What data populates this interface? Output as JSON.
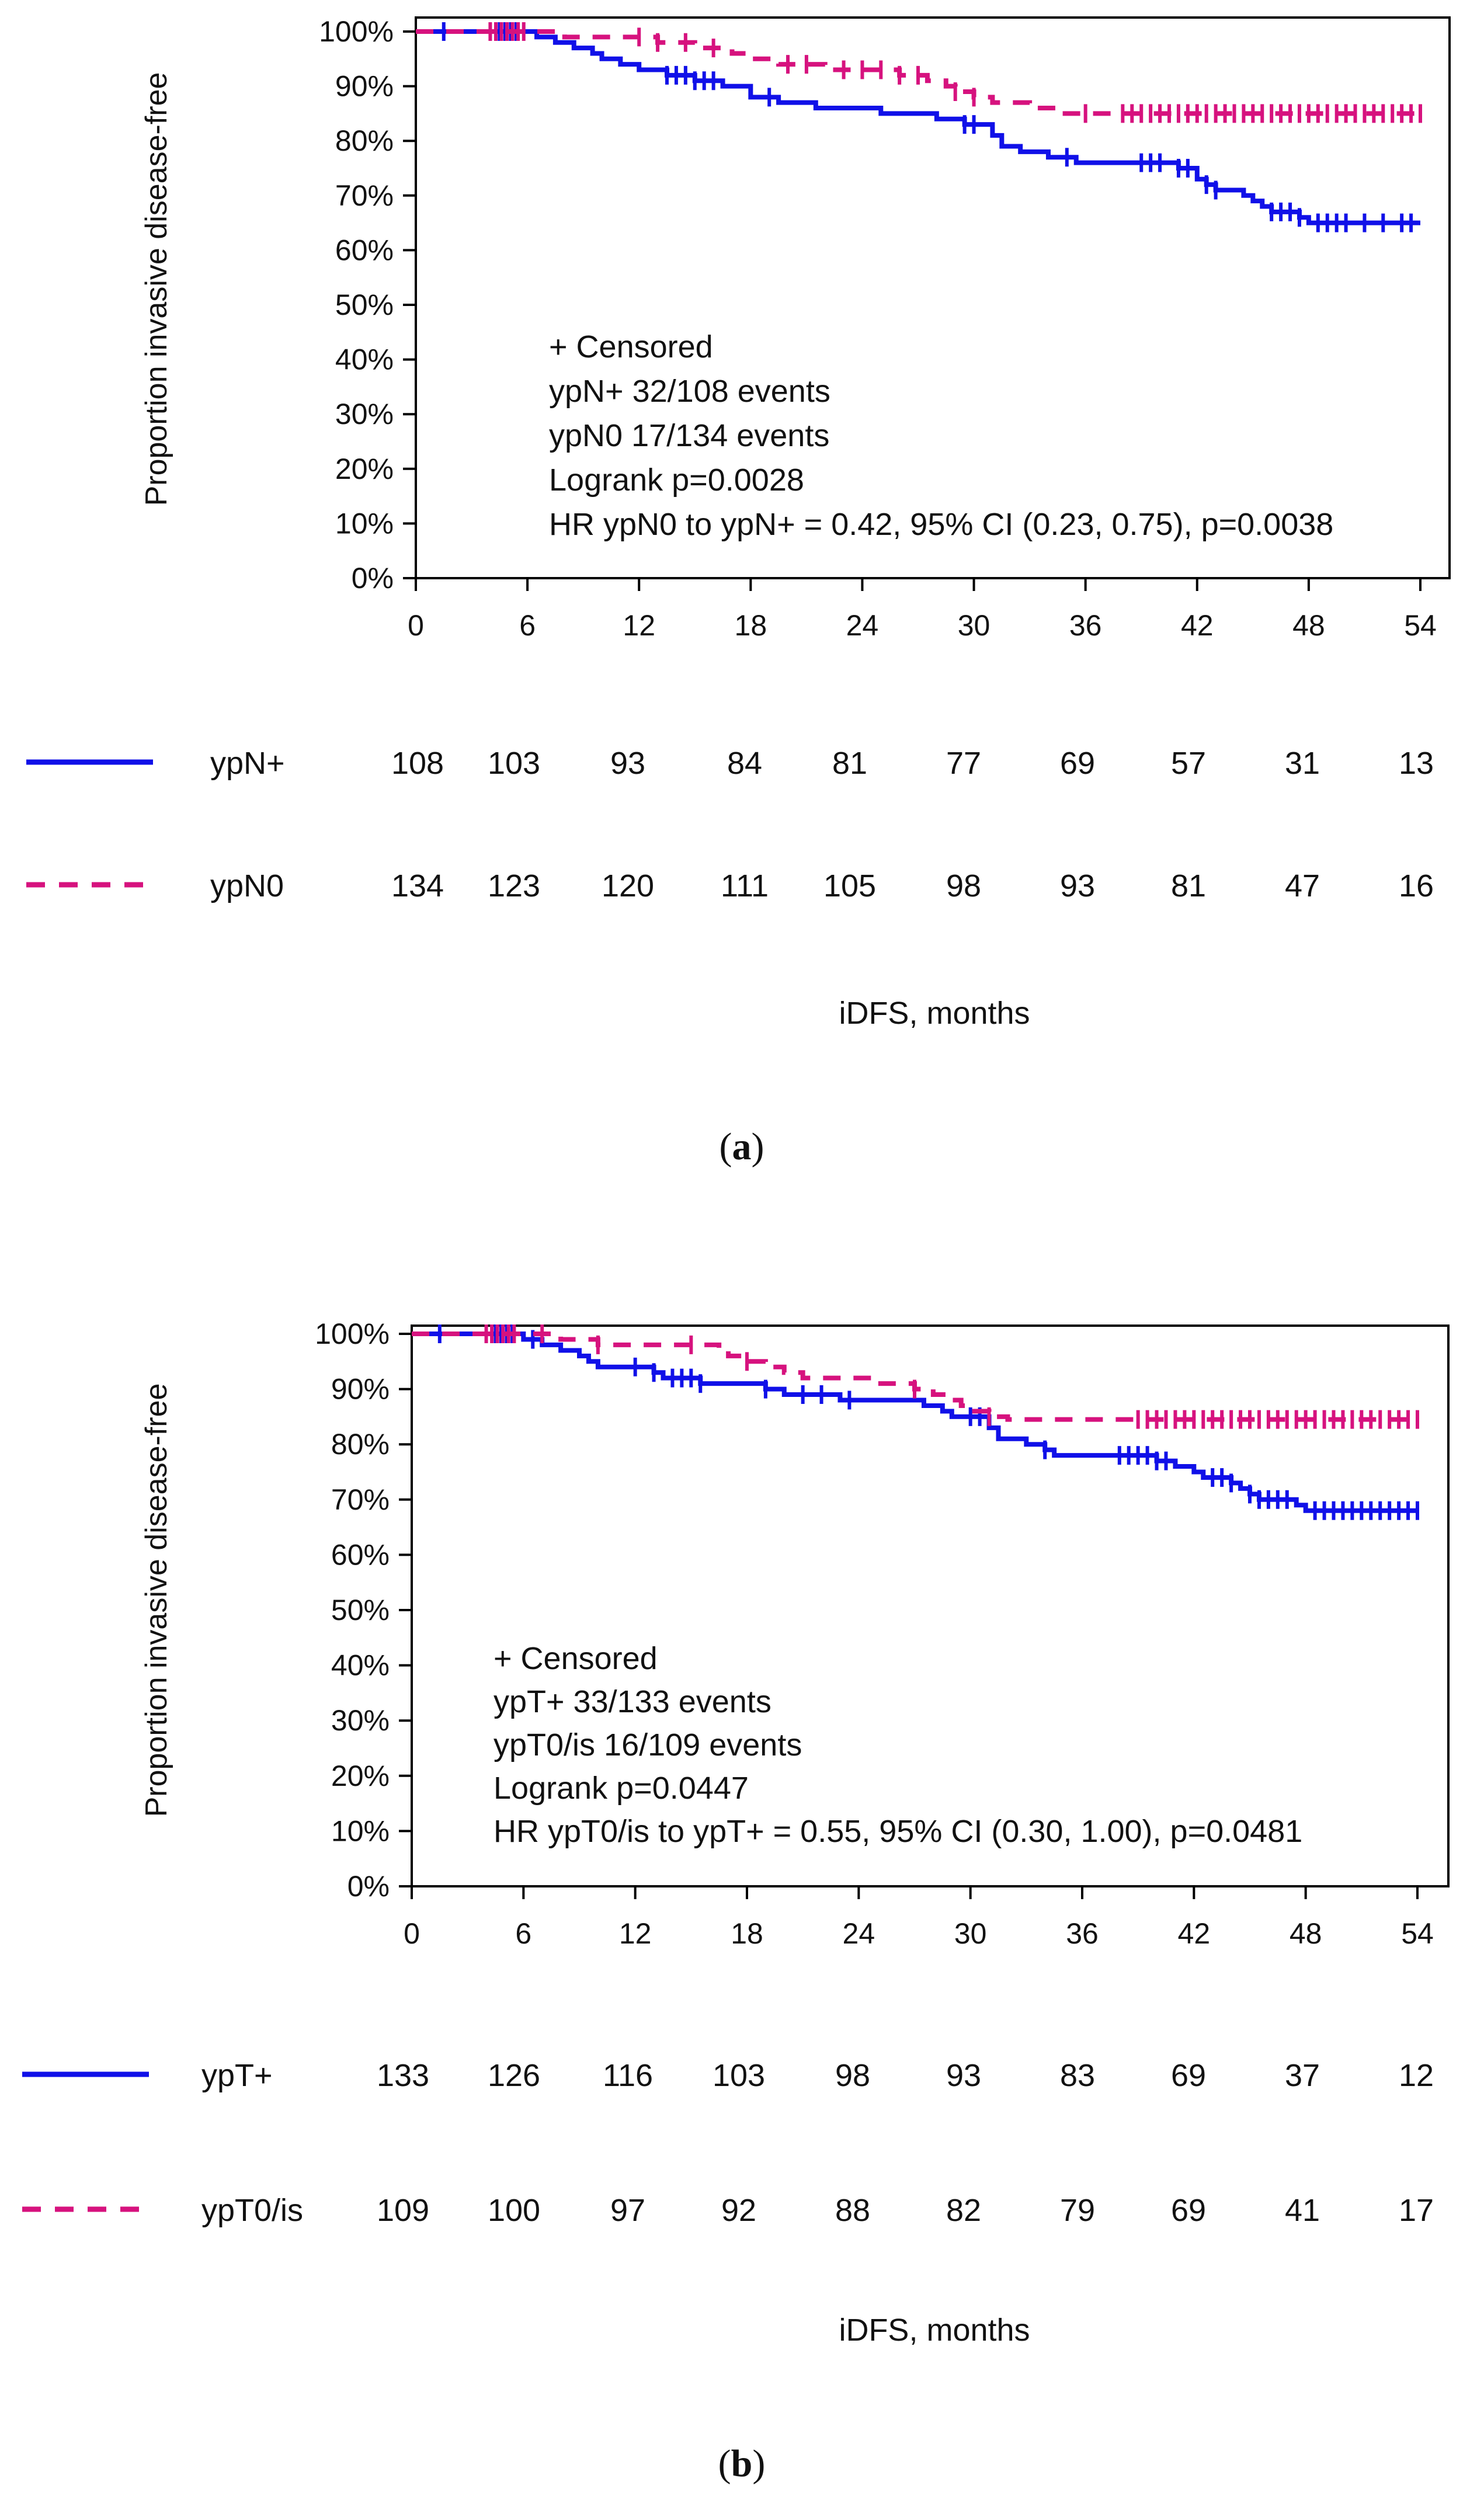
{
  "colors": {
    "series1": "#1010e8",
    "series2": "#d6127e",
    "axis": "#000000"
  },
  "chart_data": [
    {
      "type": "line",
      "panel_label": "a",
      "xlabel": "iDFS, months",
      "ylabel": "Proportion invasive disease-free",
      "xlim": [
        0,
        54
      ],
      "ylim": [
        0,
        100
      ],
      "x_ticks": [
        "0",
        "6",
        "12",
        "18",
        "24",
        "30",
        "36",
        "42",
        "48",
        "54"
      ],
      "y_ticks": [
        "0%",
        "10%",
        "20%",
        "30%",
        "40%",
        "50%",
        "60%",
        "70%",
        "80%",
        "90%",
        "100%"
      ],
      "annotations": [
        "+ Censored",
        "ypN+  32/108 events",
        "ypN0  17/134 events",
        "Logrank p=0.0028",
        "HR ypN0 to ypN+ = 0.42, 95% CI (0.23, 0.75),  p=0.0038"
      ],
      "series": [
        {
          "name": "ypN+",
          "style": "solid",
          "steps": [
            [
              0,
              100
            ],
            [
              6.5,
              99
            ],
            [
              7.5,
              98
            ],
            [
              8.5,
              97
            ],
            [
              9.5,
              96
            ],
            [
              10,
              95
            ],
            [
              11,
              94
            ],
            [
              12,
              93
            ],
            [
              13.5,
              92
            ],
            [
              15,
              91
            ],
            [
              16.5,
              90
            ],
            [
              18,
              88
            ],
            [
              19.5,
              87
            ],
            [
              21.5,
              86
            ],
            [
              25,
              85
            ],
            [
              28,
              84
            ],
            [
              29.5,
              83
            ],
            [
              31,
              81
            ],
            [
              31.5,
              79
            ],
            [
              32.5,
              78
            ],
            [
              34,
              77
            ],
            [
              35.5,
              76
            ],
            [
              41,
              75
            ],
            [
              42,
              73
            ],
            [
              42.5,
              72
            ],
            [
              43,
              71
            ],
            [
              44.5,
              70
            ],
            [
              45,
              69
            ],
            [
              45.5,
              68
            ],
            [
              46,
              67
            ],
            [
              47.5,
              66
            ],
            [
              48,
              65
            ]
          ],
          "end_x": 54,
          "censored": [
            1.5,
            4.5,
            4.8,
            5.1,
            5.4,
            13.5,
            14,
            14.5,
            15,
            15.5,
            16,
            19,
            29.5,
            30,
            35,
            39,
            39.5,
            40,
            41,
            41.5,
            42.5,
            43,
            46,
            46.5,
            47,
            47.5,
            48.5,
            49,
            49.5,
            50,
            51,
            52,
            53,
            53.5
          ],
          "at_risk": [
            108,
            103,
            93,
            84,
            81,
            77,
            69,
            57,
            31,
            13
          ]
        },
        {
          "name": "ypN0",
          "style": "dashed",
          "steps": [
            [
              0,
              100
            ],
            [
              8,
              99
            ],
            [
              13,
              98
            ],
            [
              15,
              97
            ],
            [
              17,
              96
            ],
            [
              18,
              95
            ],
            [
              19.5,
              94
            ],
            [
              22,
              93
            ],
            [
              26,
              92
            ],
            [
              27.5,
              91
            ],
            [
              28.5,
              90
            ],
            [
              29,
              89
            ],
            [
              30,
              88
            ],
            [
              31,
              87
            ],
            [
              33,
              86
            ],
            [
              34.5,
              85
            ]
          ],
          "end_x": 54,
          "censored": [
            4,
            4.3,
            4.6,
            4.9,
            5.2,
            5.5,
            5.8,
            12,
            13,
            14.5,
            16,
            20,
            21,
            23,
            24,
            25,
            26,
            27,
            29,
            30,
            36,
            38,
            38.5,
            39,
            39.5,
            40,
            40.5,
            41,
            41.5,
            42,
            42.5,
            43,
            43.5,
            44,
            44.5,
            45,
            45.5,
            46,
            46.5,
            47,
            47.5,
            48,
            48.5,
            49,
            49.5,
            50,
            50.5,
            51,
            51.5,
            52,
            52.5,
            53,
            53.5,
            54
          ],
          "at_risk": [
            134,
            123,
            120,
            111,
            105,
            98,
            93,
            81,
            47,
            16
          ]
        }
      ]
    },
    {
      "type": "line",
      "panel_label": "b",
      "xlabel": "iDFS, months",
      "ylabel": "Proportion invasive disease-free",
      "xlim": [
        0,
        54
      ],
      "ylim": [
        0,
        100
      ],
      "x_ticks": [
        "0",
        "6",
        "12",
        "18",
        "24",
        "30",
        "36",
        "42",
        "48",
        "54"
      ],
      "y_ticks": [
        "0%",
        "10%",
        "20%",
        "30%",
        "40%",
        "50%",
        "60%",
        "70%",
        "80%",
        "90%",
        "100%"
      ],
      "annotations": [
        "+ Censored",
        "ypT+  33/133 events",
        "ypT0/is  16/109 events",
        "Logrank p=0.0447",
        "HR ypT0/is to ypT+ = 0.55, 95% CI (0.30, 1.00),  p=0.0481"
      ],
      "series": [
        {
          "name": "ypT+",
          "style": "solid",
          "steps": [
            [
              0,
              100
            ],
            [
              6,
              99
            ],
            [
              7,
              98
            ],
            [
              8,
              97
            ],
            [
              9,
              96
            ],
            [
              9.5,
              95
            ],
            [
              10,
              94
            ],
            [
              13,
              93
            ],
            [
              13.5,
              92
            ],
            [
              15.5,
              91
            ],
            [
              19,
              90
            ],
            [
              20,
              89
            ],
            [
              23,
              88
            ],
            [
              27.5,
              87
            ],
            [
              28.5,
              86
            ],
            [
              29,
              85
            ],
            [
              31,
              83
            ],
            [
              31.5,
              81
            ],
            [
              33,
              80
            ],
            [
              34,
              79
            ],
            [
              34.5,
              78
            ],
            [
              40,
              77
            ],
            [
              41,
              76
            ],
            [
              42,
              75
            ],
            [
              42.5,
              74
            ],
            [
              44,
              73
            ],
            [
              44.5,
              72
            ],
            [
              45,
              71
            ],
            [
              45.5,
              70
            ],
            [
              47.5,
              69
            ],
            [
              48,
              68
            ]
          ],
          "end_x": 54,
          "censored": [
            1.5,
            4.5,
            4.8,
            5.1,
            5.4,
            6.5,
            12,
            13,
            14,
            14.5,
            15,
            15.5,
            19,
            21,
            22,
            23.5,
            30,
            30.5,
            34,
            38,
            38.5,
            39,
            39.5,
            40,
            40.5,
            43,
            43.5,
            44,
            45,
            45.5,
            46,
            46.5,
            47,
            48.5,
            49,
            49.5,
            50,
            50.5,
            51,
            51.5,
            52,
            52.5,
            53,
            53.5,
            54
          ],
          "at_risk": [
            133,
            126,
            116,
            103,
            98,
            93,
            83,
            69,
            37,
            12
          ]
        },
        {
          "name": "ypT0/is",
          "style": "dashed",
          "steps": [
            [
              0,
              100
            ],
            [
              8,
              99
            ],
            [
              10,
              98
            ],
            [
              16.5,
              97
            ],
            [
              17,
              96
            ],
            [
              18,
              95
            ],
            [
              19,
              94
            ],
            [
              20,
              93
            ],
            [
              21,
              92
            ],
            [
              25,
              91
            ],
            [
              27,
              90
            ],
            [
              28,
              89
            ],
            [
              29,
              88
            ],
            [
              29.5,
              87
            ],
            [
              30,
              86
            ],
            [
              31,
              85
            ],
            [
              32,
              84.5
            ]
          ],
          "end_x": 54,
          "censored": [
            4,
            4.3,
            4.6,
            4.9,
            5.2,
            5.5,
            7,
            10,
            15,
            18,
            27,
            31,
            39,
            39.5,
            40,
            40.5,
            41,
            41.5,
            42,
            42.5,
            43,
            43.5,
            44,
            44.5,
            45,
            45.5,
            46,
            46.5,
            47,
            47.5,
            48,
            48.5,
            49,
            49.5,
            50,
            50.5,
            51,
            51.5,
            52,
            52.5,
            53,
            53.5,
            54
          ],
          "at_risk": [
            109,
            100,
            97,
            92,
            88,
            82,
            79,
            69,
            41,
            17
          ]
        }
      ]
    }
  ]
}
